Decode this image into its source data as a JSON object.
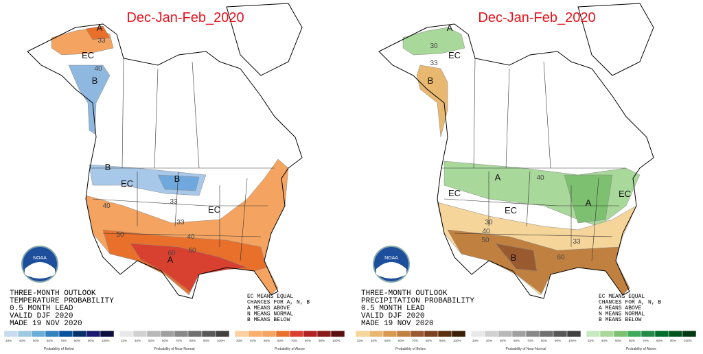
{
  "panels": [
    {
      "title": "Dec-Jan-Feb_2020",
      "region_labels": [
        "A",
        "EC",
        "B",
        "B",
        "EC",
        "B",
        "EC",
        "A"
      ],
      "contour_labels": [
        "33",
        "40",
        "33",
        "40",
        "33",
        "50",
        "40",
        "60",
        "50"
      ],
      "outlook_lines": [
        "THREE-MONTH OUTLOOK",
        "TEMPERATURE PROBABILITY",
        "0.5 MONTH LEAD",
        "VALID DJF 2020",
        "MADE 19 NOV 2020"
      ],
      "ec_note": [
        "EC MEANS EQUAL",
        "CHANCES FOR A, N, B",
        "A MEANS ABOVE",
        "N MEANS NORMAL",
        "B MEANS BELOW"
      ],
      "logo": "NOAA",
      "legend": [
        {
          "caption": "Probability of Below",
          "colors": [
            "#c6dbef",
            "#9ecae1",
            "#6baed6",
            "#3182bd",
            "#08519c",
            "#08306b",
            "#1a1a6e",
            "#0d0d40"
          ],
          "labels": [
            "33%",
            "40%",
            "50%",
            "60%",
            "70%",
            "80%",
            "90%",
            "100%"
          ]
        },
        {
          "caption": "Probability of Near-Normal",
          "colors": [
            "#e8e8e8",
            "#d0d0d0",
            "#b8b8b8",
            "#a0a0a0",
            "#888888",
            "#707070",
            "#585858",
            "#404040"
          ],
          "labels": [
            "33%",
            "40%",
            "50%",
            "60%",
            "70%",
            "80%",
            "90%",
            "100%"
          ]
        },
        {
          "caption": "Probability of Above",
          "colors": [
            "#fdd0a2",
            "#fdae6b",
            "#f4a460",
            "#e8702a",
            "#d84030",
            "#b22222",
            "#8b1a1a",
            "#5a1010"
          ],
          "labels": [
            "33%",
            "40%",
            "50%",
            "60%",
            "70%",
            "80%",
            "90%",
            "100%"
          ]
        }
      ]
    },
    {
      "title": "Dec-Jan-Feb_2020",
      "region_labels": [
        "A",
        "EC",
        "B",
        "A",
        "EC",
        "EC",
        "A",
        "EC",
        "B"
      ],
      "contour_labels": [
        "30",
        "33",
        "40",
        "30",
        "40",
        "50",
        "60",
        "33"
      ],
      "outlook_lines": [
        "THREE-MONTH OUTLOOK",
        "PRECIPITATION PROBABILITY",
        "0.5 MONTH LEAD",
        "VALID DJF 2020",
        "MADE 19 NOV 2020"
      ],
      "ec_note": [
        "EC MEANS EQUAL",
        "CHANCES FOR A, N, B",
        "A MEANS ABOVE",
        "N MEANS NORMAL",
        "B MEANS BELOW"
      ],
      "logo": "NOAA",
      "legend": [
        {
          "caption": "Probability of Below",
          "colors": [
            "#f5d59a",
            "#e8b870",
            "#d89a50",
            "#c08040",
            "#9a5a30",
            "#7a4020",
            "#5a3010",
            "#3a2008"
          ],
          "labels": [
            "33%",
            "40%",
            "50%",
            "60%",
            "70%",
            "80%",
            "90%",
            "100%"
          ]
        },
        {
          "caption": "Probability of Near-Normal",
          "colors": [
            "#e8e8e8",
            "#d0d0d0",
            "#b8b8b8",
            "#a0a0a0",
            "#888888",
            "#707070",
            "#585858",
            "#404040"
          ],
          "labels": [
            "33%",
            "40%",
            "50%",
            "60%",
            "70%",
            "80%",
            "90%",
            "100%"
          ]
        },
        {
          "caption": "Probability of Above",
          "colors": [
            "#c7e9c0",
            "#a8d89a",
            "#7cc070",
            "#41ab5d",
            "#238b45",
            "#006d2c",
            "#00551f",
            "#003a14"
          ],
          "labels": [
            "33%",
            "40%",
            "50%",
            "60%",
            "70%",
            "80%",
            "90%",
            "100%"
          ]
        }
      ]
    }
  ]
}
